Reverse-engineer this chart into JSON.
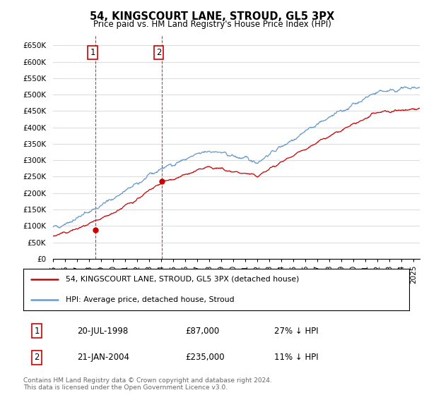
{
  "title": "54, KINGSCOURT LANE, STROUD, GL5 3PX",
  "subtitle": "Price paid vs. HM Land Registry's House Price Index (HPI)",
  "ylim": [
    0,
    680000
  ],
  "yticks": [
    0,
    50000,
    100000,
    150000,
    200000,
    250000,
    300000,
    350000,
    400000,
    450000,
    500000,
    550000,
    600000,
    650000
  ],
  "ytick_labels": [
    "£0",
    "£50K",
    "£100K",
    "£150K",
    "£200K",
    "£250K",
    "£300K",
    "£350K",
    "£400K",
    "£450K",
    "£500K",
    "£550K",
    "£600K",
    "£650K"
  ],
  "sale1_date": 1998.55,
  "sale1_price": 87000,
  "sale1_label": "1",
  "sale2_date": 2004.05,
  "sale2_price": 235000,
  "sale2_label": "2",
  "hpi_color": "#6699cc",
  "price_color": "#cc0000",
  "grid_color": "#dddddd",
  "background_color": "#ffffff",
  "legend_line1": "54, KINGSCOURT LANE, STROUD, GL5 3PX (detached house)",
  "legend_line2": "HPI: Average price, detached house, Stroud",
  "table_row1": [
    "1",
    "20-JUL-1998",
    "£87,000",
    "27% ↓ HPI"
  ],
  "table_row2": [
    "2",
    "21-JAN-2004",
    "£235,000",
    "11% ↓ HPI"
  ],
  "footer": "Contains HM Land Registry data © Crown copyright and database right 2024.\nThis data is licensed under the Open Government Licence v3.0.",
  "xmin": 1995.0,
  "xmax": 2025.5
}
